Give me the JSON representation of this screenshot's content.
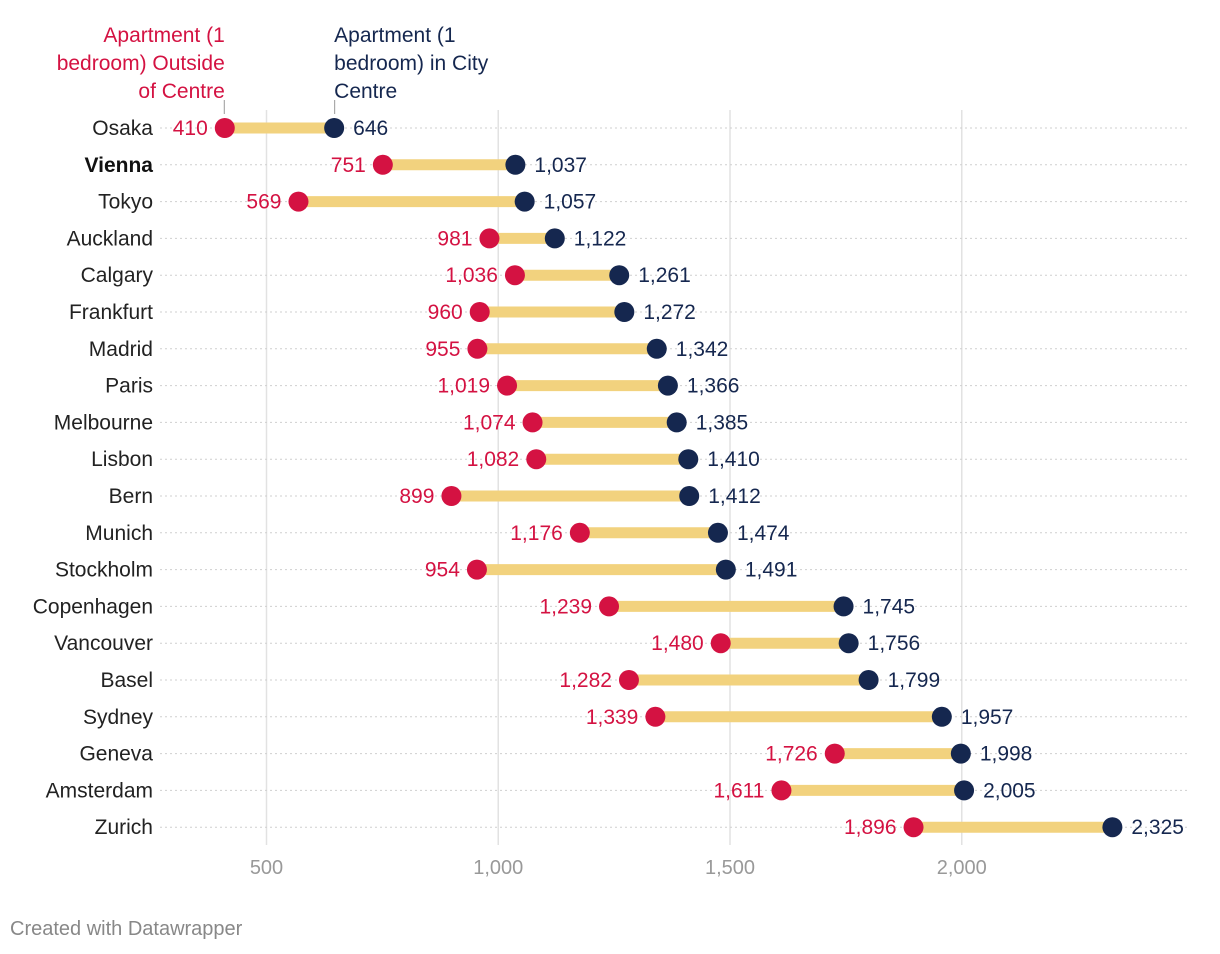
{
  "chart_data": {
    "type": "dot-range",
    "title": "",
    "xlabel": "",
    "ylabel": "",
    "xlim": [
      300,
      2450
    ],
    "x_ticks": [
      500,
      1000,
      1500,
      2000
    ],
    "x_tick_labels": [
      "500",
      "1,000",
      "1,500",
      "2,000"
    ],
    "grid": true,
    "legend_placement": "top-left",
    "series": [
      {
        "key": "outside",
        "name": "Apartment (1 bedroom) Outside of Centre",
        "color": "#d41242"
      },
      {
        "key": "city",
        "name": "Apartment (1 bedroom) in City Centre",
        "color": "#15274f"
      }
    ],
    "range_color": "#f2d27e",
    "legend_lines": {
      "outside": [
        "Apartment (1",
        "bedroom) Outside",
        "of Centre"
      ],
      "city": [
        "Apartment (1",
        "bedroom) in City",
        "Centre"
      ]
    },
    "categories": [
      "Osaka",
      "Vienna",
      "Tokyo",
      "Auckland",
      "Calgary",
      "Frankfurt",
      "Madrid",
      "Paris",
      "Melbourne",
      "Lisbon",
      "Bern",
      "Munich",
      "Stockholm",
      "Copenhagen",
      "Vancouver",
      "Basel",
      "Sydney",
      "Geneva",
      "Amsterdam",
      "Zurich"
    ],
    "highlight": [
      "Vienna"
    ],
    "outside": [
      410,
      751,
      569,
      981,
      1036,
      960,
      955,
      1019,
      1074,
      1082,
      899,
      1176,
      954,
      1239,
      1480,
      1282,
      1339,
      1726,
      1611,
      1896
    ],
    "outside_labels": [
      "410",
      "751",
      "569",
      "981",
      "1,036",
      "960",
      "955",
      "1,019",
      "1,074",
      "1,082",
      "899",
      "1,176",
      "954",
      "1,239",
      "1,480",
      "1,282",
      "1,339",
      "1,726",
      "1,611",
      "1,896"
    ],
    "city": [
      646,
      1037,
      1057,
      1122,
      1261,
      1272,
      1342,
      1366,
      1385,
      1410,
      1412,
      1474,
      1491,
      1745,
      1756,
      1799,
      1957,
      1998,
      2005,
      2325
    ],
    "city_labels": [
      "646",
      "1,037",
      "1,057",
      "1,122",
      "1,261",
      "1,272",
      "1,342",
      "1,366",
      "1,385",
      "1,410",
      "1,412",
      "1,474",
      "1,491",
      "1,745",
      "1,756",
      "1,799",
      "1,957",
      "1,998",
      "2,005",
      "2,325"
    ]
  },
  "footer": {
    "credit": "Created with Datawrapper"
  }
}
